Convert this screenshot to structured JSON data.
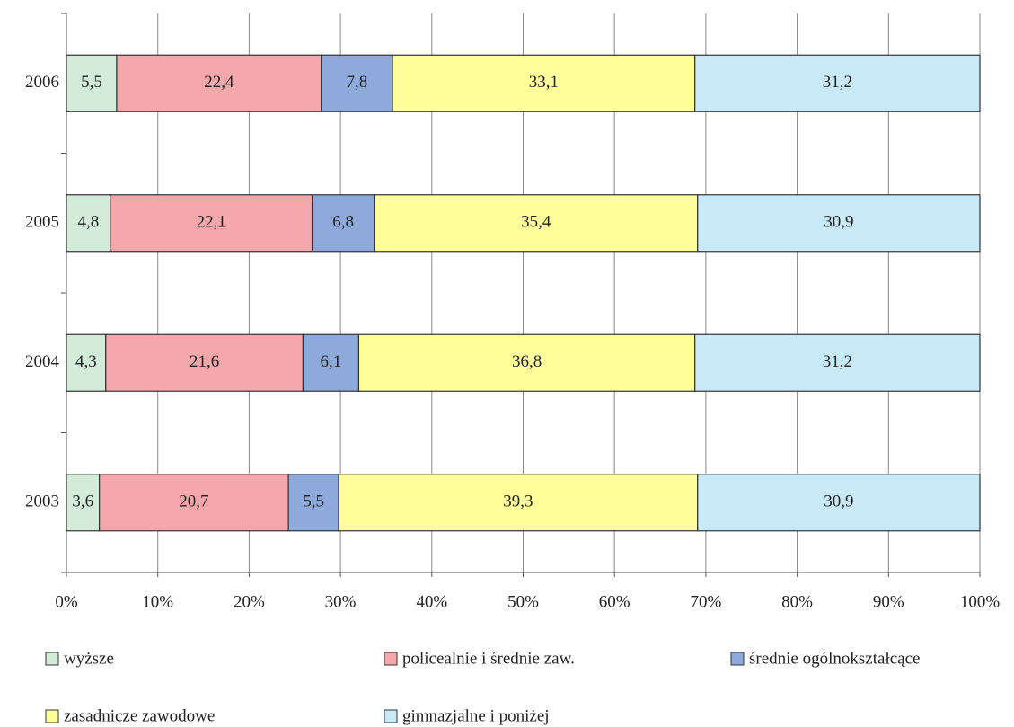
{
  "chart_data": {
    "type": "stacked-bar-horizontal",
    "categories": [
      "2006",
      "2005",
      "2004",
      "2003"
    ],
    "series": [
      {
        "name": "wyższe",
        "color": "#d3ecd9",
        "values": [
          5.5,
          4.8,
          4.3,
          3.6
        ],
        "value_labels": [
          "5,5",
          "4,8",
          "4,3",
          "3,6"
        ]
      },
      {
        "name": "policealnie i średnie zaw.",
        "color": "#f4a8ab",
        "values": [
          22.4,
          22.1,
          21.6,
          20.7
        ],
        "value_labels": [
          "22,4",
          "22,1",
          "21,6",
          "20,7"
        ]
      },
      {
        "name": "średnie ogólnokształcące",
        "color": "#8eaadb",
        "values": [
          7.8,
          6.8,
          6.1,
          5.5
        ],
        "value_labels": [
          "7,8",
          "6,8",
          "6,1",
          "5,5"
        ]
      },
      {
        "name": "zasadnicze zawodowe",
        "color": "#ffff9c",
        "values": [
          33.1,
          35.4,
          36.8,
          39.3
        ],
        "value_labels": [
          "33,1",
          "35,4",
          "36,8",
          "39,3"
        ]
      },
      {
        "name": "gimnazjalne i poniżej",
        "color": "#c8eaf8",
        "values": [
          31.2,
          30.9,
          31.2,
          30.9
        ],
        "value_labels": [
          "31,2",
          "30,9",
          "31,2",
          "30,9"
        ]
      }
    ],
    "xlim": [
      0,
      100
    ],
    "xticks": [
      {
        "value": 0,
        "label": "0%"
      },
      {
        "value": 10,
        "label": "10%"
      },
      {
        "value": 20,
        "label": "20%"
      },
      {
        "value": 30,
        "label": "30%"
      },
      {
        "value": 40,
        "label": "40%"
      },
      {
        "value": 50,
        "label": "50%"
      },
      {
        "value": 60,
        "label": "60%"
      },
      {
        "value": 70,
        "label": "70%"
      },
      {
        "value": 80,
        "label": "80%"
      },
      {
        "value": 90,
        "label": "90%"
      },
      {
        "value": 100,
        "label": "100%"
      }
    ],
    "grid": true,
    "legend": "bottom"
  }
}
